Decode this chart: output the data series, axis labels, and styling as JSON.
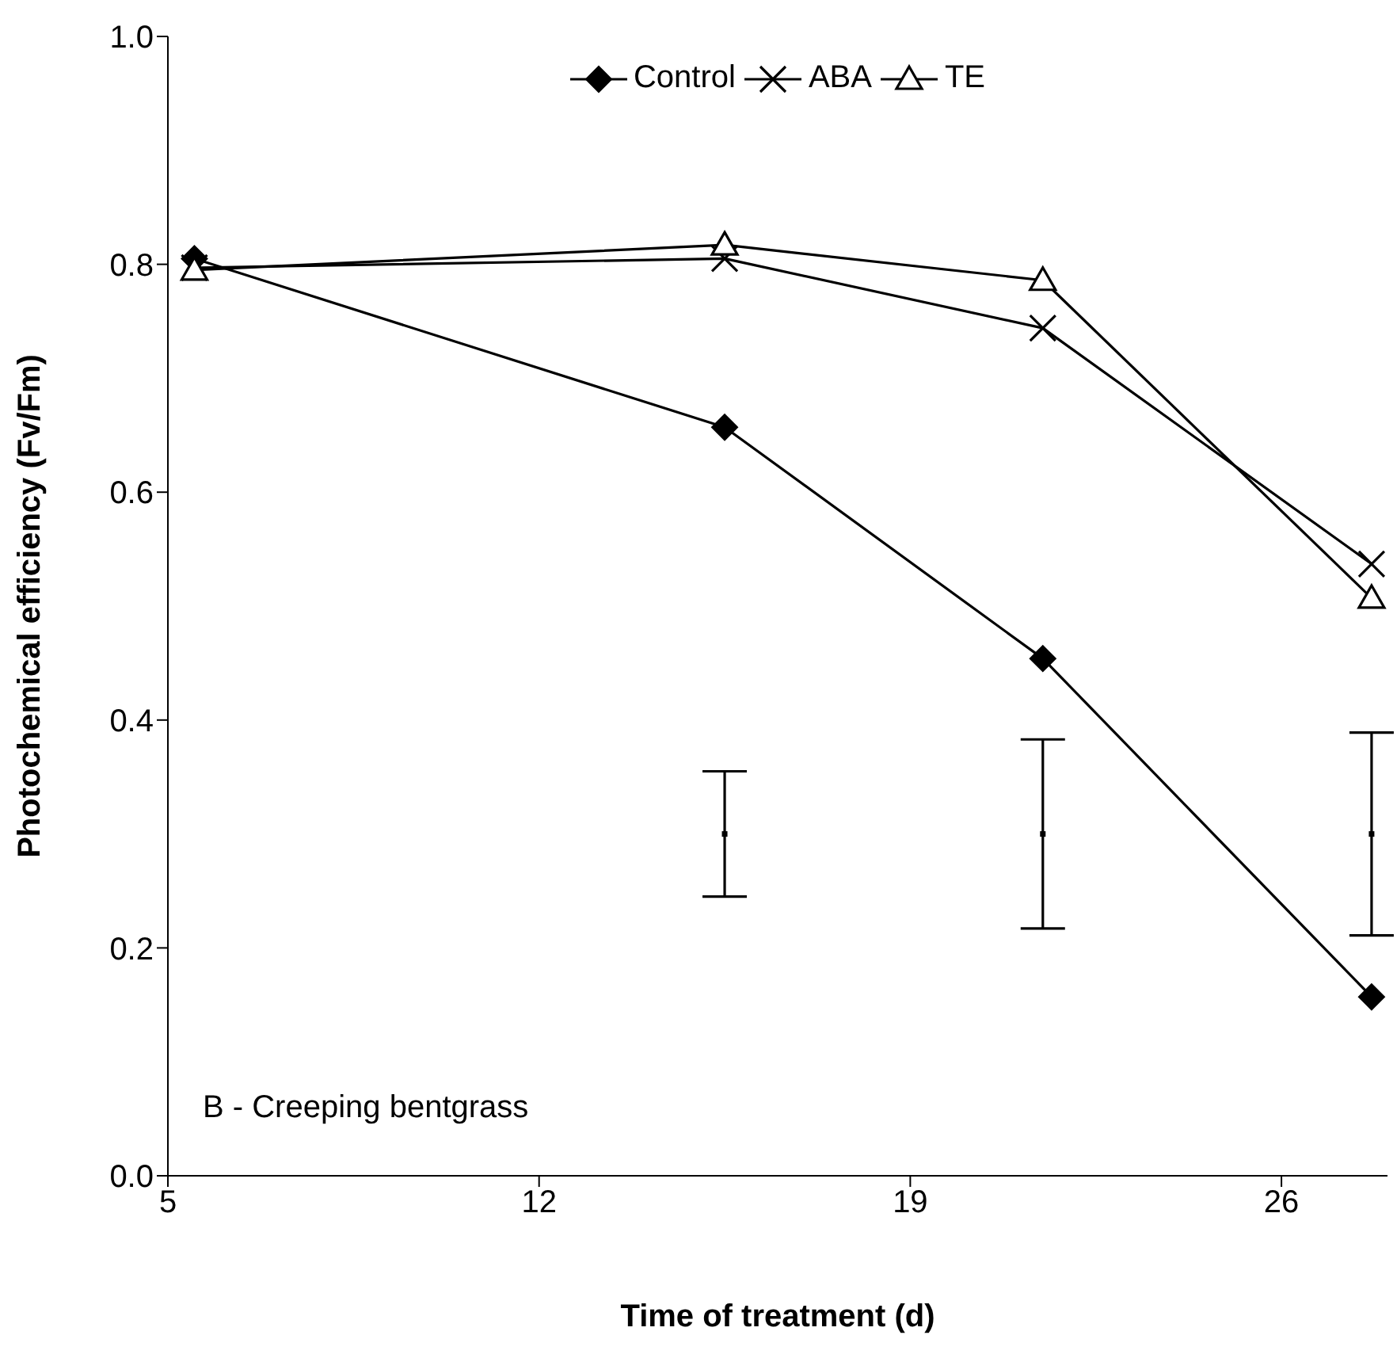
{
  "chart_data": {
    "type": "line",
    "xlabel": "Time of treatment (d)",
    "ylabel": "Photochemical efficiency (Fv/Fm)",
    "x": [
      5.5,
      15.5,
      21.5,
      27.7
    ],
    "xlim": [
      5,
      28
    ],
    "xticks": [
      5,
      12,
      19,
      26
    ],
    "ylim": [
      0,
      1
    ],
    "yticks": [
      {
        "value": 0,
        "label": "0.0"
      },
      {
        "value": 0.2,
        "label": "0.2"
      },
      {
        "value": 0.4,
        "label": "0.4"
      },
      {
        "value": 0.6,
        "label": "0.6"
      },
      {
        "value": 0.8,
        "label": "0.8"
      },
      {
        "value": 1,
        "label": "1.0"
      }
    ],
    "grid": false,
    "legend": "top",
    "line_style": "solid",
    "annotations": [
      "B - Creeping bentgrass"
    ],
    "series": [
      {
        "name": "Control",
        "color": "#000000",
        "marker": "diamond",
        "values": [
          0.805,
          0.657,
          0.454,
          0.157
        ]
      },
      {
        "name": "ABA",
        "color": "#000000",
        "marker": "cross",
        "values": [
          0.797,
          0.805,
          0.744,
          0.537
        ]
      },
      {
        "name": "TE",
        "color": "#000000",
        "marker": "triangle",
        "values": [
          0.795,
          0.817,
          0.786,
          0.507
        ]
      },
      {
        "type": "scatter",
        "color": "#000000",
        "marker": "square",
        "values": [
          null,
          0.3,
          0.3,
          0.3
        ],
        "errors": [
          null,
          0.055,
          0.083,
          0.089
        ]
      }
    ]
  }
}
